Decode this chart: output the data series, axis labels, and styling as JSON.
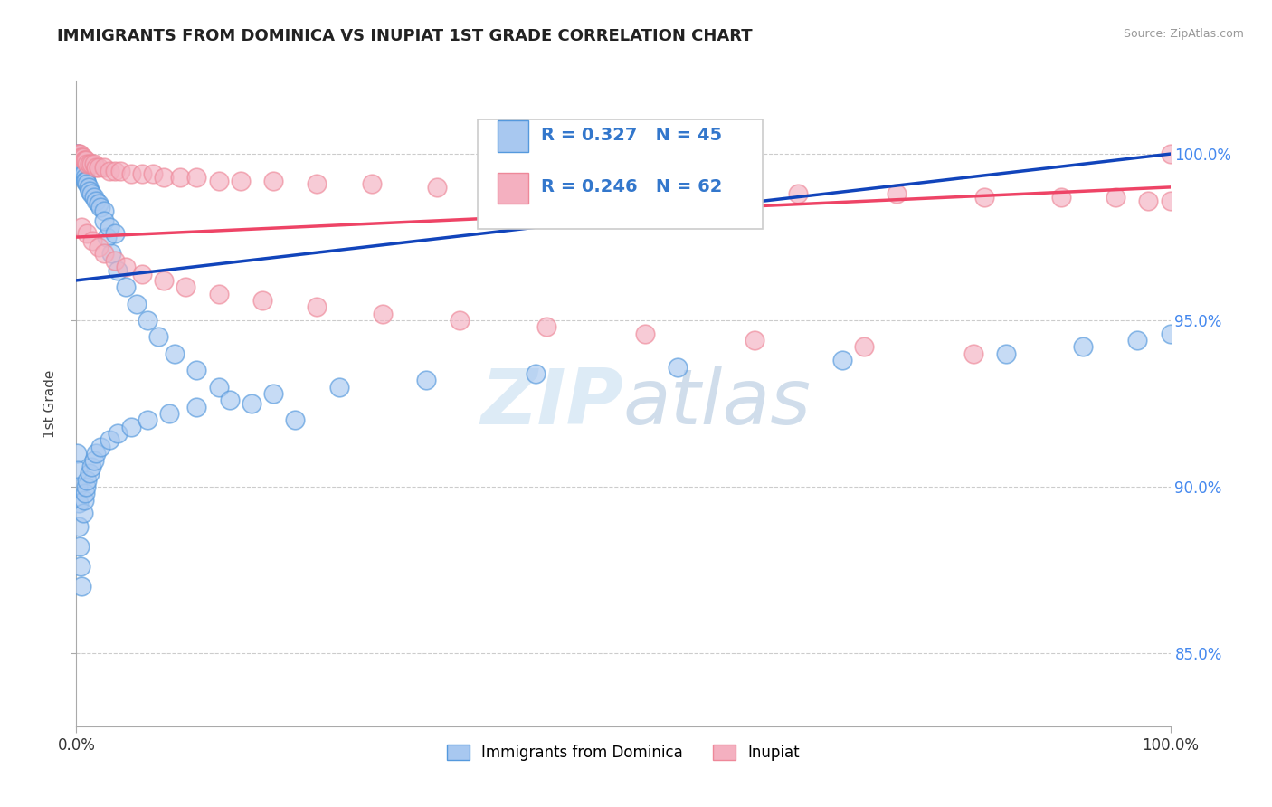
{
  "title": "IMMIGRANTS FROM DOMINICA VS INUPIAT 1ST GRADE CORRELATION CHART",
  "source_text": "Source: ZipAtlas.com",
  "ylabel": "1st Grade",
  "x_min": 0.0,
  "x_max": 1.0,
  "y_min": 0.828,
  "y_max": 1.022,
  "x_tick_labels": [
    "0.0%",
    "100.0%"
  ],
  "y_tick_labels": [
    "85.0%",
    "90.0%",
    "95.0%",
    "100.0%"
  ],
  "y_tick_values": [
    0.85,
    0.9,
    0.95,
    1.0
  ],
  "blue_R": 0.327,
  "blue_N": 45,
  "pink_R": 0.246,
  "pink_N": 62,
  "blue_color": "#A8C8F0",
  "pink_color": "#F4B0C0",
  "blue_edge_color": "#5599DD",
  "pink_edge_color": "#EE8899",
  "blue_line_color": "#1144BB",
  "pink_line_color": "#EE4466",
  "legend_label_blue": "Immigrants from Dominica",
  "legend_label_pink": "Inupiat",
  "watermark_zip": "ZIP",
  "watermark_atlas": "atlas",
  "background_color": "#FFFFFF",
  "grid_color": "#CCCCCC",
  "title_color": "#222222",
  "blue_scatter_x": [
    0.0005,
    0.001,
    0.001,
    0.001,
    0.002,
    0.002,
    0.002,
    0.003,
    0.003,
    0.003,
    0.003,
    0.004,
    0.004,
    0.005,
    0.005,
    0.006,
    0.006,
    0.007,
    0.008,
    0.008,
    0.009,
    0.01,
    0.011,
    0.012,
    0.014,
    0.016,
    0.018,
    0.02,
    0.022,
    0.025,
    0.028,
    0.032,
    0.038,
    0.045,
    0.055,
    0.065,
    0.075,
    0.09,
    0.11,
    0.13,
    0.16,
    0.2,
    0.025,
    0.03,
    0.035
  ],
  "blue_scatter_y": [
    1.0,
    1.0,
    0.999,
    0.998,
    0.999,
    0.998,
    0.997,
    0.998,
    0.997,
    0.996,
    0.995,
    0.997,
    0.996,
    0.996,
    0.995,
    0.995,
    0.994,
    0.994,
    0.993,
    0.992,
    0.992,
    0.991,
    0.99,
    0.989,
    0.988,
    0.987,
    0.986,
    0.985,
    0.984,
    0.983,
    0.975,
    0.97,
    0.965,
    0.96,
    0.955,
    0.95,
    0.945,
    0.94,
    0.935,
    0.93,
    0.925,
    0.92,
    0.98,
    0.978,
    0.976
  ],
  "blue_scatter_x2": [
    0.0005,
    0.001,
    0.001,
    0.002,
    0.002,
    0.003,
    0.004,
    0.005,
    0.006,
    0.007,
    0.008,
    0.009,
    0.01,
    0.012,
    0.014,
    0.016,
    0.018,
    0.022,
    0.03,
    0.038,
    0.05,
    0.065,
    0.085,
    0.11,
    0.14,
    0.18,
    0.24,
    0.32,
    0.42,
    0.55,
    0.7,
    0.85,
    0.92,
    0.97,
    1.0
  ],
  "blue_scatter_y2": [
    0.91,
    0.905,
    0.9,
    0.895,
    0.888,
    0.882,
    0.876,
    0.87,
    0.892,
    0.896,
    0.898,
    0.9,
    0.902,
    0.904,
    0.906,
    0.908,
    0.91,
    0.912,
    0.914,
    0.916,
    0.918,
    0.92,
    0.922,
    0.924,
    0.926,
    0.928,
    0.93,
    0.932,
    0.934,
    0.936,
    0.938,
    0.94,
    0.942,
    0.944,
    0.946
  ],
  "pink_scatter_x": [
    0.001,
    0.002,
    0.003,
    0.004,
    0.005,
    0.006,
    0.007,
    0.008,
    0.009,
    0.01,
    0.012,
    0.014,
    0.016,
    0.018,
    0.02,
    0.025,
    0.03,
    0.035,
    0.04,
    0.05,
    0.06,
    0.07,
    0.08,
    0.095,
    0.11,
    0.13,
    0.15,
    0.18,
    0.22,
    0.27,
    0.33,
    0.4,
    0.48,
    0.57,
    0.66,
    0.75,
    0.83,
    0.9,
    0.95,
    0.98,
    1.0,
    1.0,
    0.005,
    0.01,
    0.015,
    0.02,
    0.025,
    0.035,
    0.045,
    0.06,
    0.08,
    0.1,
    0.13,
    0.17,
    0.22,
    0.28,
    0.35,
    0.43,
    0.52,
    0.62,
    0.72,
    0.82
  ],
  "pink_scatter_y": [
    1.0,
    1.0,
    1.0,
    0.999,
    0.999,
    0.999,
    0.998,
    0.998,
    0.998,
    0.997,
    0.997,
    0.997,
    0.997,
    0.996,
    0.996,
    0.996,
    0.995,
    0.995,
    0.995,
    0.994,
    0.994,
    0.994,
    0.993,
    0.993,
    0.993,
    0.992,
    0.992,
    0.992,
    0.991,
    0.991,
    0.99,
    0.99,
    0.989,
    0.989,
    0.988,
    0.988,
    0.987,
    0.987,
    0.987,
    0.986,
    0.986,
    1.0,
    0.978,
    0.976,
    0.974,
    0.972,
    0.97,
    0.968,
    0.966,
    0.964,
    0.962,
    0.96,
    0.958,
    0.956,
    0.954,
    0.952,
    0.95,
    0.948,
    0.946,
    0.944,
    0.942,
    0.94
  ],
  "blue_trend_x": [
    0.0,
    1.0
  ],
  "blue_trend_y": [
    0.962,
    1.0
  ],
  "pink_trend_x": [
    0.0,
    1.0
  ],
  "pink_trend_y": [
    0.975,
    0.99
  ]
}
